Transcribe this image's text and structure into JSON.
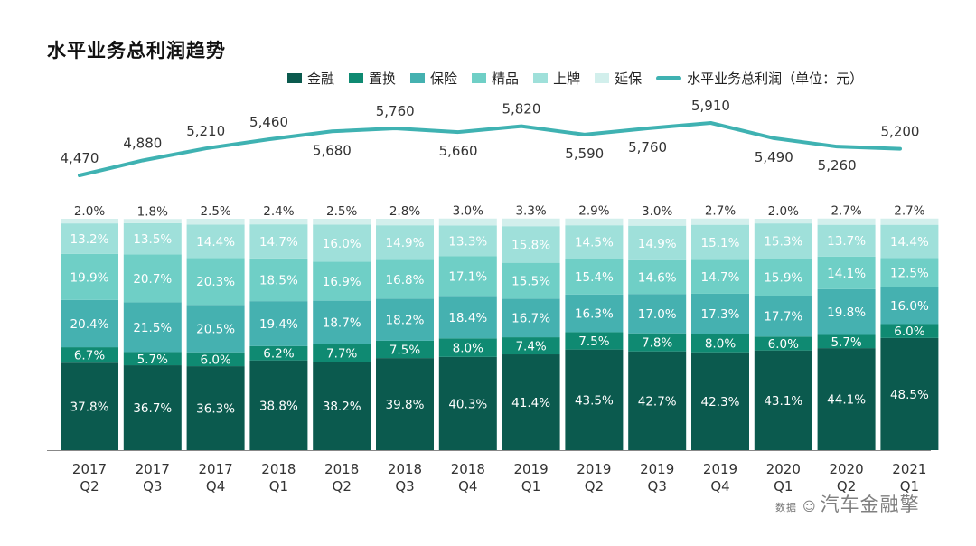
{
  "chart_data": {
    "type": "bar",
    "stacked": true,
    "title": "水平业务总利润趋势",
    "categories": [
      [
        "2017",
        "Q2"
      ],
      [
        "2017",
        "Q3"
      ],
      [
        "2017",
        "Q4"
      ],
      [
        "2018",
        "Q1"
      ],
      [
        "2018",
        "Q2"
      ],
      [
        "2018",
        "Q3"
      ],
      [
        "2018",
        "Q4"
      ],
      [
        "2019",
        "Q1"
      ],
      [
        "2019",
        "Q2"
      ],
      [
        "2019",
        "Q3"
      ],
      [
        "2019",
        "Q4"
      ],
      [
        "2020",
        "Q1"
      ],
      [
        "2020",
        "Q2"
      ],
      [
        "2021",
        "Q1"
      ]
    ],
    "series": [
      {
        "name": "金融",
        "color": "#0b5a4e",
        "label_color": "#ffffff",
        "values": [
          37.8,
          36.7,
          36.3,
          38.8,
          38.2,
          39.8,
          40.3,
          41.4,
          43.5,
          42.7,
          42.3,
          43.1,
          44.1,
          48.5
        ]
      },
      {
        "name": "置换",
        "color": "#0f8a72",
        "label_color": "#ffffff",
        "values": [
          6.7,
          5.7,
          6.0,
          6.2,
          7.7,
          7.5,
          8.0,
          7.4,
          7.5,
          7.8,
          8.0,
          6.0,
          5.7,
          6.0
        ]
      },
      {
        "name": "保险",
        "color": "#45b1b0",
        "label_color": "#ffffff",
        "values": [
          20.4,
          21.5,
          20.5,
          19.4,
          18.7,
          18.2,
          18.4,
          16.7,
          16.3,
          17.0,
          17.3,
          17.7,
          19.8,
          16.0
        ]
      },
      {
        "name": "精品",
        "color": "#6fcfc6",
        "label_color": "#ffffff",
        "values": [
          19.9,
          20.7,
          20.3,
          18.5,
          16.9,
          16.8,
          17.1,
          15.5,
          15.4,
          14.6,
          14.7,
          15.9,
          14.1,
          12.5
        ]
      },
      {
        "name": "上牌",
        "color": "#9fe0da",
        "label_color": "#ffffff",
        "values": [
          13.2,
          13.5,
          14.4,
          14.7,
          16.0,
          14.9,
          13.3,
          15.8,
          14.5,
          14.9,
          15.1,
          15.3,
          13.7,
          14.4
        ]
      },
      {
        "name": "延保",
        "color": "#d2efec",
        "label_color": "#333333",
        "values": [
          2.0,
          1.8,
          2.5,
          2.4,
          2.5,
          2.8,
          3.0,
          3.3,
          2.9,
          3.0,
          2.7,
          2.0,
          2.7,
          2.7
        ]
      }
    ],
    "line": {
      "name": "水平业务总利润（单位：元）",
      "color": "#3fb2b2",
      "values": [
        4470,
        4880,
        5210,
        5460,
        5680,
        5760,
        5660,
        5820,
        5590,
        5760,
        5910,
        5490,
        5260,
        5200
      ],
      "labels": [
        "4,470",
        "4,880",
        "5,210",
        "5,460",
        "5,680",
        "5,760",
        "5,660",
        "5,820",
        "5,590",
        "5,760",
        "5,910",
        "5,490",
        "5,260",
        "5,200"
      ]
    },
    "ylim": [
      0,
      100
    ],
    "legend_position": "top-right",
    "grid": false
  },
  "watermark": {
    "source_text": "数据",
    "brand_text": "汽车金融擎"
  }
}
